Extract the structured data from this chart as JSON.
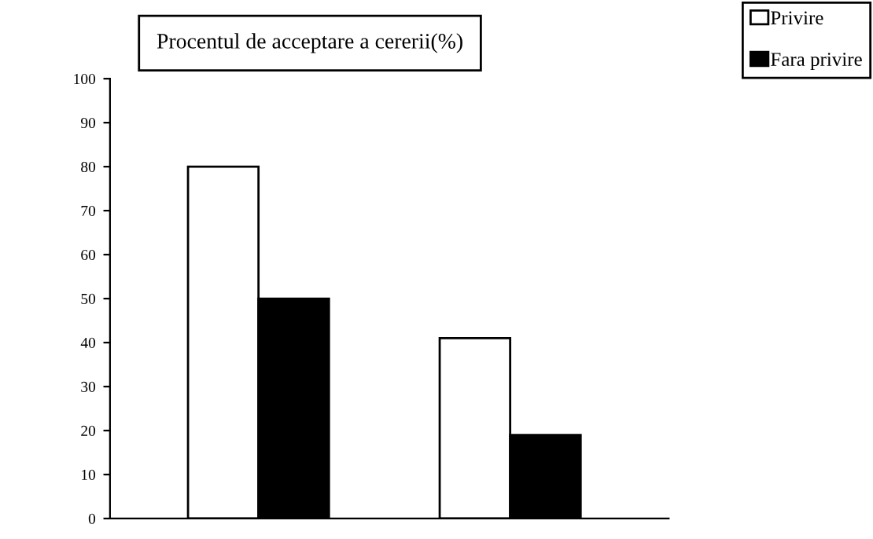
{
  "chart_data": {
    "type": "bar",
    "title": "Procentul de acceptare a cererii(%)",
    "categories": [
      null,
      null
    ],
    "series": [
      {
        "name": "Privire",
        "color": "#ffffff",
        "values": [
          80,
          41
        ]
      },
      {
        "name": "Fara privire",
        "color": "#000000",
        "values": [
          50,
          19
        ]
      }
    ],
    "ylim": [
      0,
      100
    ],
    "yticks": [
      0,
      10,
      20,
      30,
      40,
      50,
      60,
      70,
      80,
      90,
      100
    ],
    "grid": false,
    "legend": "top right",
    "tick_labels": "y"
  }
}
